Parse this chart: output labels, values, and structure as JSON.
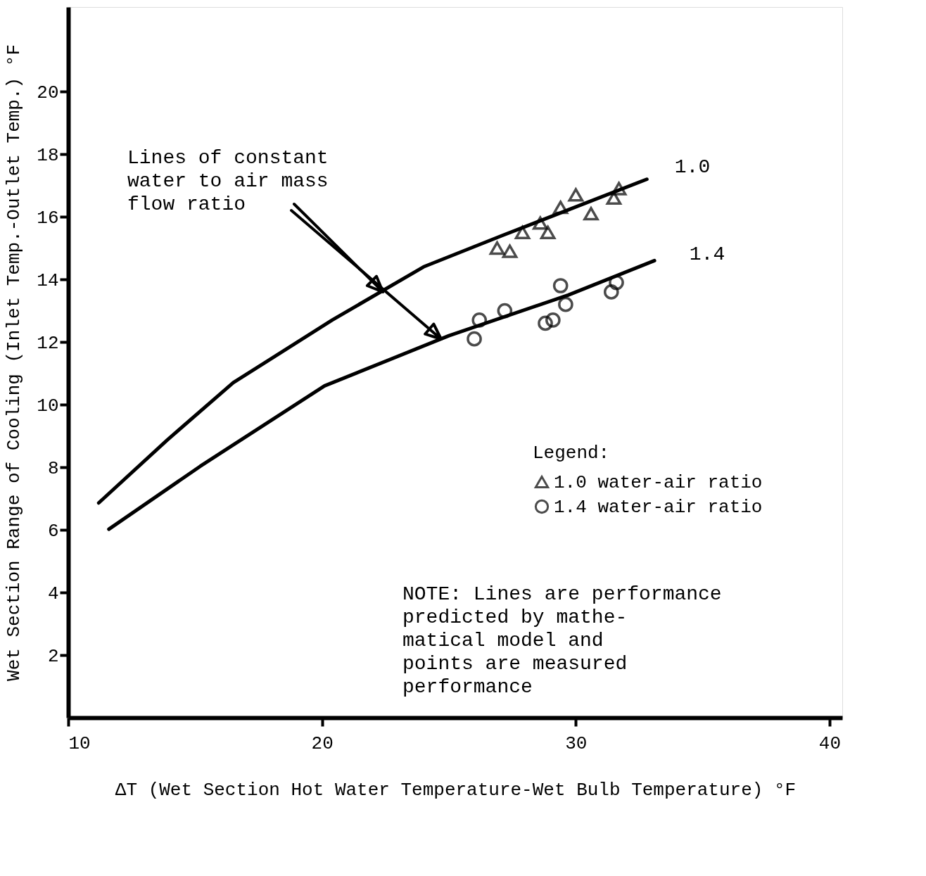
{
  "chart_data": {
    "type": "scatter",
    "xlabel": "ΔT (Wet Section Hot Water Temperature-Wet Bulb Temperature) °F",
    "ylabel": "Wet Section Range of Cooling (Inlet Temp.-Outlet Temp.) °F",
    "legend_title": "Legend:",
    "legend": "right",
    "grid": false,
    "xlim": [
      10,
      40.5
    ],
    "ylim": [
      0,
      22.7
    ],
    "xticks": [
      10,
      20,
      30,
      40
    ],
    "yticks": [
      2,
      4,
      6,
      8,
      10,
      12,
      14,
      16,
      18,
      20
    ],
    "series": [
      {
        "type": "line",
        "color": "#000000",
        "marker": "none",
        "line_style": "solid",
        "x": [
          11.2,
          13.9,
          16.5,
          20.4,
          24.0,
          27.1,
          32.8
        ],
        "values": [
          6.86,
          8.87,
          10.7,
          12.7,
          14.4,
          15.4,
          17.2
        ]
      },
      {
        "type": "line",
        "color": "#000000",
        "marker": "none",
        "line_style": "solid",
        "x": [
          11.6,
          15.2,
          20.1,
          25.0,
          29.7,
          33.1
        ],
        "values": [
          6.02,
          8.03,
          10.6,
          12.2,
          13.5,
          14.6
        ]
      },
      {
        "type": "scatter",
        "name": "1.0 water-air ratio",
        "color": "#000000",
        "marker": "triangle",
        "x": [
          26.9,
          27.4,
          27.9,
          28.6,
          28.9,
          29.4,
          30.0,
          30.6,
          31.5,
          31.7
        ],
        "values": [
          15.0,
          14.9,
          15.5,
          15.8,
          15.5,
          16.3,
          16.7,
          16.1,
          16.6,
          16.9
        ]
      },
      {
        "type": "scatter",
        "name": "1.4 water-air ratio",
        "color": "#000000",
        "marker": "circle",
        "x": [
          26.0,
          26.2,
          27.2,
          28.8,
          29.1,
          29.4,
          29.6,
          31.4,
          31.6
        ],
        "values": [
          12.1,
          12.7,
          13.0,
          12.6,
          12.7,
          13.8,
          13.2,
          13.6,
          13.9
        ]
      }
    ],
    "annotations": [
      {
        "text": "Lines of constant\nwater to air mass\nflow ratio",
        "x": 22.4,
        "y": 13.6
      },
      "1.0",
      "1.4",
      "NOTE:  Lines are performance\n       predicted by mathe-\n       matical model and\n       points are measured\n       performance"
    ]
  }
}
